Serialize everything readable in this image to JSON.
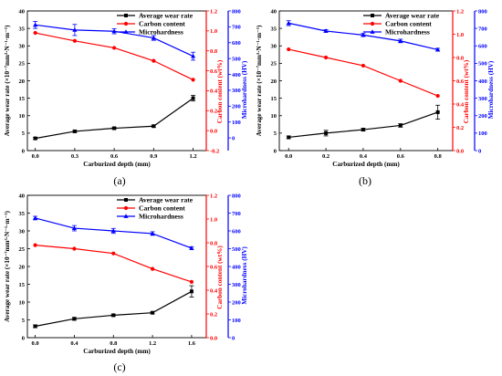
{
  "figure": {
    "colors": {
      "wear": "#000000",
      "carbon": "#ff0000",
      "hardness": "#0000ff"
    }
  },
  "chart_data": [
    {
      "type": "line",
      "panel": "(a)",
      "xlabel": "Carburized depth (mm)",
      "ylabel": "Average wear rate (×10⁻⁷mm³·N⁻¹·m⁻¹)",
      "ylabel2": "Carbon content (wt%)",
      "ylabel3": "Microhardness (HV)",
      "x": [
        0.0,
        0.3,
        0.6,
        0.9,
        1.2
      ],
      "xticks": [
        "0.0",
        "0.3",
        "0.6",
        "0.9",
        "1.2"
      ],
      "xlim": [
        -0.06,
        1.3
      ],
      "ylim": [
        0,
        40
      ],
      "yticks": [
        0,
        5,
        10,
        15,
        20,
        25,
        30,
        35,
        40
      ],
      "y2lim": [
        -0.2,
        1.2
      ],
      "y2ticks": [
        "-0.2",
        "0.0",
        "0.2",
        "0.4",
        "0.6",
        "0.8",
        "1.0",
        "1.2"
      ],
      "y3lim": [
        -80,
        800
      ],
      "y3ticks": [
        0,
        100,
        200,
        300,
        400,
        500,
        600,
        700,
        800
      ],
      "legend": "top-right",
      "series": [
        {
          "name": "Average wear rate",
          "axis": "left",
          "marker": "square",
          "values": [
            3.5,
            5.5,
            6.4,
            7.0,
            15.0
          ],
          "errors": [
            0.3,
            0.3,
            0.3,
            0.3,
            0.8
          ]
        },
        {
          "name": "Carbon content",
          "axis": "right1",
          "marker": "circle",
          "values": [
            0.98,
            0.9,
            0.83,
            0.7,
            0.51
          ],
          "errors": [
            0,
            0,
            0,
            0,
            0
          ]
        },
        {
          "name": "Microhardness",
          "axis": "right2",
          "marker": "triangle",
          "values": [
            712,
            680,
            672,
            630,
            515
          ],
          "errors": [
            22,
            35,
            16,
            15,
            25
          ]
        }
      ]
    },
    {
      "type": "line",
      "panel": "(b)",
      "xlabel": "Carburized depth (mm)",
      "ylabel": "Average wear rate (×10⁻⁷mm³·N⁻¹·m⁻¹)",
      "ylabel2": "Carbon content (wt%)",
      "ylabel3": "Microhardness (HV)",
      "x": [
        0.0,
        0.2,
        0.4,
        0.6,
        0.8
      ],
      "xticks": [
        "0.0",
        "0.2",
        "0.4",
        "0.6",
        "0.8"
      ],
      "xlim": [
        -0.05,
        0.88
      ],
      "ylim": [
        0,
        40
      ],
      "yticks": [
        0,
        5,
        10,
        15,
        20,
        25,
        30,
        35,
        40
      ],
      "y2lim": [
        0,
        1.2
      ],
      "y2ticks": [
        "0.0",
        "0.2",
        "0.4",
        "0.6",
        "0.8",
        "1.0",
        "1.2"
      ],
      "y3lim": [
        0,
        800
      ],
      "y3ticks": [
        0,
        100,
        200,
        300,
        400,
        500,
        600,
        700,
        800
      ],
      "legend": "top-right",
      "series": [
        {
          "name": "Average wear rate",
          "axis": "left",
          "marker": "square",
          "values": [
            3.8,
            5.0,
            6.0,
            7.2,
            11.0
          ],
          "errors": [
            0.4,
            0.8,
            0.4,
            0.5,
            2.0
          ]
        },
        {
          "name": "Carbon content",
          "axis": "right1",
          "marker": "circle",
          "values": [
            0.87,
            0.8,
            0.73,
            0.6,
            0.47
          ],
          "errors": [
            0,
            0,
            0,
            0,
            0
          ]
        },
        {
          "name": "Microhardness",
          "axis": "right2",
          "marker": "triangle",
          "values": [
            730,
            685,
            662,
            628,
            578
          ],
          "errors": [
            14,
            8,
            9,
            10,
            8
          ]
        }
      ]
    },
    {
      "type": "line",
      "panel": "(c)",
      "xlabel": "Carburized depth (mm)",
      "ylabel": "Average wear rate (×10⁻⁷mm³·N⁻¹·m⁻¹)",
      "ylabel2": "Carbon content (wt%)",
      "ylabel3": "Microhardness (HV)",
      "x": [
        0.0,
        0.4,
        0.8,
        1.2,
        1.6
      ],
      "xticks": [
        "0.0",
        "0.4",
        "0.8",
        "1.2",
        "1.6"
      ],
      "xlim": [
        -0.08,
        1.75
      ],
      "ylim": [
        0,
        40
      ],
      "yticks": [
        0,
        5,
        10,
        15,
        20,
        25,
        30,
        35,
        40
      ],
      "y2lim": [
        0,
        1.2
      ],
      "y2ticks": [
        "0.0",
        "0.2",
        "0.4",
        "0.6",
        "0.8",
        "1.0",
        "1.2"
      ],
      "y3lim": [
        0,
        800
      ],
      "y3ticks": [
        0,
        100,
        200,
        300,
        400,
        500,
        600,
        700,
        800
      ],
      "legend": "top-right",
      "series": [
        {
          "name": "Average wear rate",
          "axis": "left",
          "marker": "square",
          "values": [
            3.2,
            5.3,
            6.3,
            7.0,
            13.0
          ],
          "errors": [
            0.4,
            0.4,
            0.3,
            0.3,
            1.6
          ]
        },
        {
          "name": "Carbon content",
          "axis": "right1",
          "marker": "circle",
          "values": [
            0.78,
            0.75,
            0.71,
            0.58,
            0.47
          ],
          "errors": [
            0,
            0,
            0,
            0,
            0
          ]
        },
        {
          "name": "Microhardness",
          "axis": "right2",
          "marker": "triangle",
          "values": [
            672,
            615,
            600,
            585,
            503
          ],
          "errors": [
            10,
            15,
            14,
            10,
            8
          ]
        }
      ]
    }
  ]
}
